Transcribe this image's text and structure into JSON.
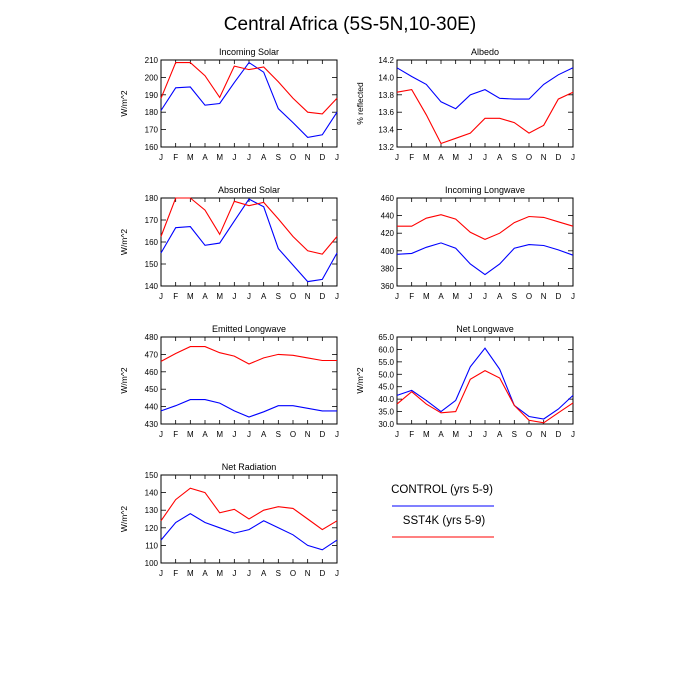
{
  "figure_title": "Central Africa (5S-5N,10-30E)",
  "colors": {
    "control": "#0000ff",
    "sst4k": "#ff0000"
  },
  "legend": {
    "control_label": "CONTROL (yrs 5-9)",
    "sst4k_label": "SST4K (yrs 5-9)"
  },
  "chart_data": [
    {
      "id": "incoming-solar",
      "type": "line",
      "title": "Incoming Solar",
      "xlabel": "",
      "ylabel": "W/m^2",
      "categories": [
        "J",
        "F",
        "M",
        "A",
        "M",
        "J",
        "J",
        "A",
        "S",
        "O",
        "N",
        "D",
        "J"
      ],
      "ylim": [
        160,
        210
      ],
      "yticks": [
        "160",
        "170",
        "180",
        "190",
        "200",
        "210"
      ],
      "series": [
        {
          "name": "CONTROL (yrs 5-9)",
          "values": [
            181,
            194,
            194.5,
            184,
            185,
            197,
            208.5,
            203,
            182,
            174,
            165.5,
            167,
            180
          ]
        },
        {
          "name": "SST4K (yrs 5-9)",
          "values": [
            188,
            208.5,
            208.5,
            201,
            188.5,
            206.5,
            204.5,
            206,
            197.5,
            188,
            180,
            179,
            188
          ]
        }
      ]
    },
    {
      "id": "albedo",
      "type": "line",
      "title": "Albedo",
      "xlabel": "",
      "ylabel": "% reflected",
      "categories": [
        "J",
        "F",
        "M",
        "A",
        "M",
        "J",
        "J",
        "A",
        "S",
        "O",
        "N",
        "D",
        "J"
      ],
      "ylim": [
        13.2,
        14.2
      ],
      "yticks": [
        "13.2",
        "13.4",
        "13.6",
        "13.8",
        "14.0",
        "14.2"
      ],
      "series": [
        {
          "name": "CONTROL (yrs 5-9)",
          "values": [
            14.11,
            14.01,
            13.92,
            13.72,
            13.64,
            13.8,
            13.86,
            13.76,
            13.75,
            13.75,
            13.92,
            14.03,
            14.11
          ]
        },
        {
          "name": "SST4K (yrs 5-9)",
          "values": [
            13.83,
            13.86,
            13.57,
            13.24,
            13.3,
            13.36,
            13.53,
            13.53,
            13.48,
            13.36,
            13.45,
            13.75,
            13.83
          ]
        }
      ]
    },
    {
      "id": "absorbed-solar",
      "type": "line",
      "title": "Absorbed Solar",
      "xlabel": "",
      "ylabel": "W/m^2",
      "categories": [
        "J",
        "F",
        "M",
        "A",
        "M",
        "J",
        "J",
        "A",
        "S",
        "O",
        "N",
        "D",
        "J"
      ],
      "ylim": [
        140,
        180
      ],
      "yticks": [
        "140",
        "150",
        "160",
        "170",
        "180"
      ],
      "series": [
        {
          "name": "CONTROL (yrs 5-9)",
          "values": [
            155,
            166.5,
            167,
            158.5,
            159.5,
            169.5,
            179.5,
            176,
            157,
            149.5,
            142,
            143,
            155
          ]
        },
        {
          "name": "SST4K (yrs 5-9)",
          "values": [
            162.5,
            180,
            180,
            174.5,
            163.5,
            178.5,
            176.5,
            178,
            170.5,
            162.5,
            156,
            154.5,
            162.5
          ]
        }
      ]
    },
    {
      "id": "incoming-longwave",
      "type": "line",
      "title": "Incoming Longwave",
      "xlabel": "",
      "ylabel": "",
      "categories": [
        "J",
        "F",
        "M",
        "A",
        "M",
        "J",
        "J",
        "A",
        "S",
        "O",
        "N",
        "D",
        "J"
      ],
      "ylim": [
        360,
        460
      ],
      "yticks": [
        "360",
        "380",
        "400",
        "420",
        "440",
        "460"
      ],
      "series": [
        {
          "name": "CONTROL (yrs 5-9)",
          "values": [
            396,
            397,
            404,
            409,
            403,
            385,
            373,
            385,
            403,
            407,
            406,
            401,
            395
          ]
        },
        {
          "name": "SST4K (yrs 5-9)",
          "values": [
            428,
            428,
            437,
            441,
            436,
            421,
            413,
            420,
            432,
            439,
            438,
            433,
            428
          ]
        }
      ]
    },
    {
      "id": "emitted-longwave",
      "type": "line",
      "title": "Emitted Longwave",
      "xlabel": "",
      "ylabel": "W/m^2",
      "categories": [
        "J",
        "F",
        "M",
        "A",
        "M",
        "J",
        "J",
        "A",
        "S",
        "O",
        "N",
        "D",
        "J"
      ],
      "ylim": [
        430,
        480
      ],
      "yticks": [
        "430",
        "440",
        "450",
        "460",
        "470",
        "480"
      ],
      "series": [
        {
          "name": "CONTROL (yrs 5-9)",
          "values": [
            437.5,
            440.5,
            444,
            444,
            442,
            437.5,
            434,
            437,
            440.5,
            440.5,
            439,
            437.5,
            437.5
          ]
        },
        {
          "name": "SST4K (yrs 5-9)",
          "values": [
            466,
            470.5,
            474.5,
            474.5,
            471,
            469,
            464.5,
            468,
            470,
            469.5,
            468,
            466.5,
            466.5
          ]
        }
      ]
    },
    {
      "id": "net-longwave",
      "type": "line",
      "title": "Net Longwave",
      "xlabel": "",
      "ylabel": "W/m^2",
      "categories": [
        "J",
        "F",
        "M",
        "A",
        "M",
        "J",
        "J",
        "A",
        "S",
        "O",
        "N",
        "D",
        "J"
      ],
      "ylim": [
        30,
        65
      ],
      "yticks": [
        "30.0",
        "35.0",
        "40.0",
        "45.0",
        "50.0",
        "55.0",
        "60.0",
        "65.0"
      ],
      "series": [
        {
          "name": "CONTROL (yrs 5-9)",
          "values": [
            41.5,
            43.5,
            39.5,
            35,
            39.5,
            53,
            60.5,
            52,
            37.5,
            33,
            32,
            36,
            41.5
          ]
        },
        {
          "name": "SST4K (yrs 5-9)",
          "values": [
            38,
            43,
            38,
            34.5,
            35,
            48,
            51.5,
            48.5,
            37.5,
            31.5,
            30.5,
            34.5,
            38.5
          ]
        }
      ]
    },
    {
      "id": "net-radiation",
      "type": "line",
      "title": "Net Radiation",
      "xlabel": "",
      "ylabel": "W/m^2",
      "categories": [
        "J",
        "F",
        "M",
        "A",
        "M",
        "J",
        "J",
        "A",
        "S",
        "O",
        "N",
        "D",
        "J"
      ],
      "ylim": [
        100,
        150
      ],
      "yticks": [
        "100",
        "110",
        "120",
        "130",
        "140",
        "150"
      ],
      "series": [
        {
          "name": "CONTROL (yrs 5-9)",
          "values": [
            113,
            123,
            128,
            123,
            120,
            117,
            119,
            124,
            120,
            116,
            110,
            107.5,
            113
          ]
        },
        {
          "name": "SST4K (yrs 5-9)",
          "values": [
            124,
            136,
            142.5,
            140,
            128.5,
            130.5,
            125,
            130,
            132,
            131,
            125,
            119,
            124
          ]
        }
      ]
    }
  ]
}
